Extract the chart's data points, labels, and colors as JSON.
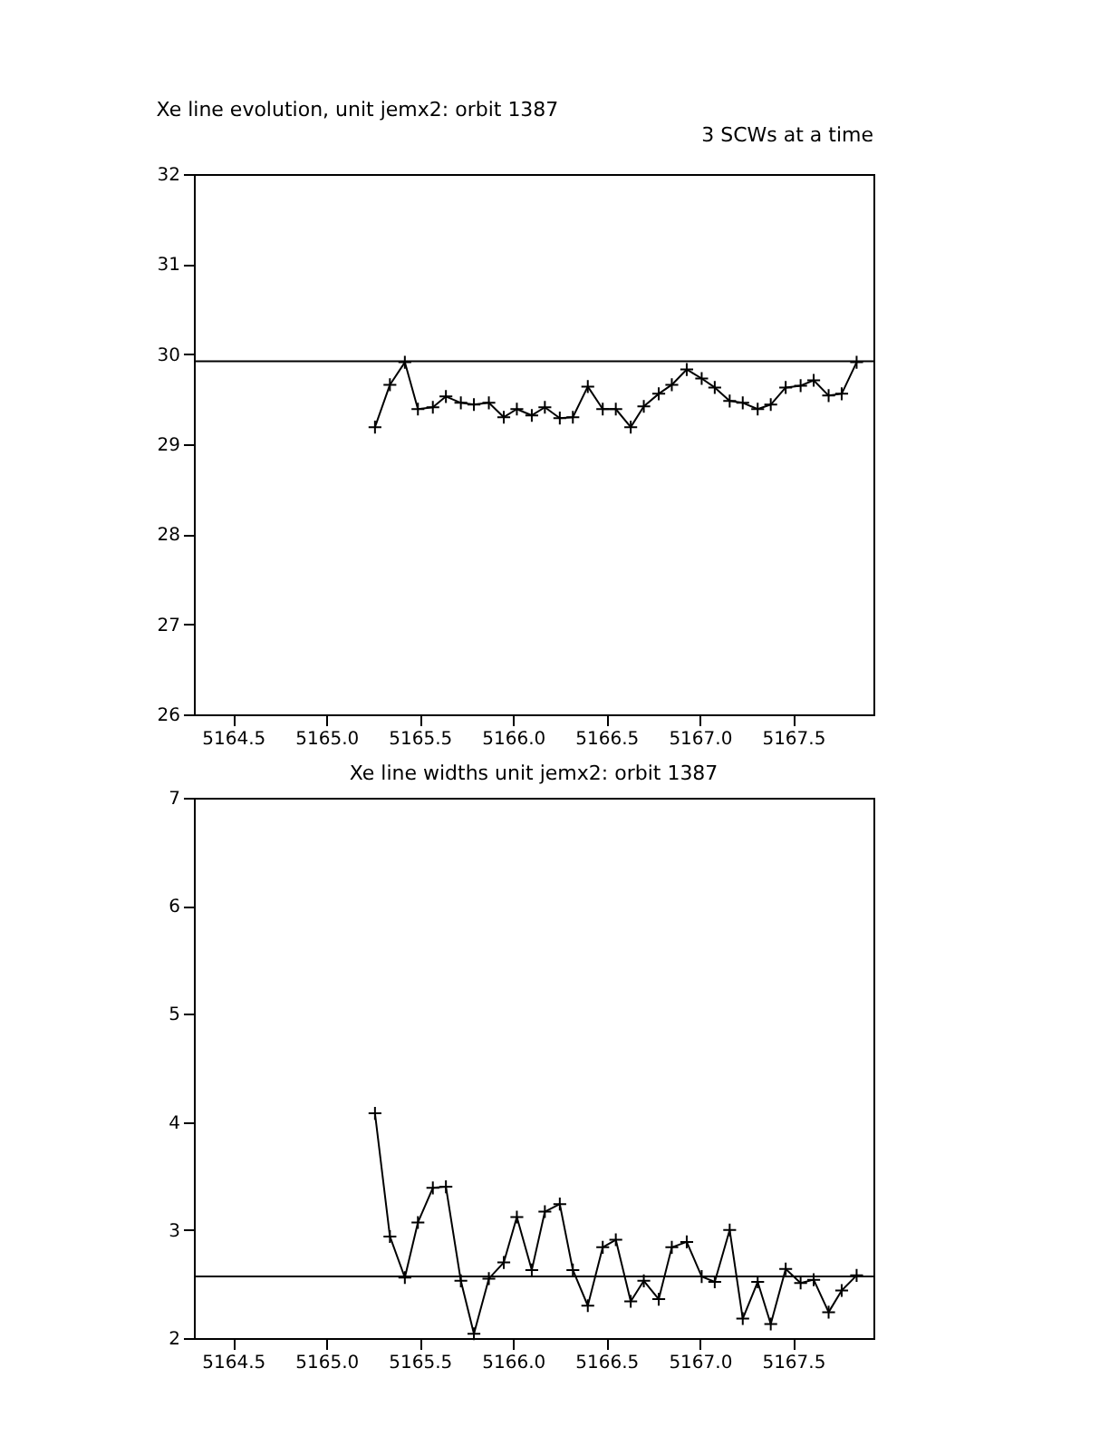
{
  "chart_data": [
    {
      "type": "line",
      "title": "Xe line evolution, unit jemx2: orbit 1387",
      "annotations": [
        "3 SCWs at a time"
      ],
      "x": [
        5165.26,
        5165.34,
        5165.42,
        5165.49,
        5165.57,
        5165.64,
        5165.72,
        5165.79,
        5165.87,
        5165.95,
        5166.02,
        5166.1,
        5166.17,
        5166.25,
        5166.32,
        5166.4,
        5166.48,
        5166.55,
        5166.63,
        5166.7,
        5166.78,
        5166.85,
        5166.93,
        5167.01,
        5167.08,
        5167.16,
        5167.23,
        5167.31,
        5167.38,
        5167.46,
        5167.54,
        5167.61,
        5167.69,
        5167.76,
        5167.84
      ],
      "series": [
        {
          "color": "#000000",
          "values": [
            29.19,
            29.66,
            29.91,
            29.39,
            29.41,
            29.53,
            29.46,
            29.44,
            29.46,
            29.3,
            29.39,
            29.32,
            29.41,
            29.29,
            29.3,
            29.64,
            29.39,
            29.39,
            29.19,
            29.42,
            29.56,
            29.66,
            29.83,
            29.73,
            29.63,
            29.48,
            29.46,
            29.39,
            29.44,
            29.63,
            29.65,
            29.71,
            29.54,
            29.56,
            29.91
          ]
        }
      ],
      "xlim": [
        5164.29,
        5167.93
      ],
      "xticks": [
        5164.5,
        {
          "value": 5165,
          "label": "5165.0"
        },
        5165.5,
        {
          "value": 5166,
          "label": "5166.0"
        },
        5166.5,
        {
          "value": 5167,
          "label": "5167.0"
        },
        5167.5
      ],
      "ylim": [
        26,
        32
      ],
      "yticks": [
        26,
        27,
        28,
        29,
        30,
        31,
        32
      ],
      "ref_lines": [
        {
          "axis": "y",
          "value": 29.92,
          "color": "#000000"
        }
      ],
      "marker": "cross",
      "line_style": "solid",
      "grid": false,
      "legend": false
    },
    {
      "type": "line",
      "title": "Xe line widths unit jemx2: orbit 1387",
      "x": [
        5165.26,
        5165.34,
        5165.42,
        5165.49,
        5165.57,
        5165.64,
        5165.72,
        5165.79,
        5165.87,
        5165.95,
        5166.02,
        5166.1,
        5166.17,
        5166.25,
        5166.32,
        5166.4,
        5166.48,
        5166.55,
        5166.63,
        5166.7,
        5166.78,
        5166.85,
        5166.93,
        5167.01,
        5167.08,
        5167.16,
        5167.23,
        5167.31,
        5167.38,
        5167.46,
        5167.54,
        5167.61,
        5167.69,
        5167.76,
        5167.84
      ],
      "series": [
        {
          "color": "#000000",
          "values": [
            4.08,
            2.94,
            2.56,
            3.07,
            3.39,
            3.4,
            2.53,
            2.04,
            2.55,
            2.7,
            3.12,
            2.63,
            3.17,
            3.24,
            2.63,
            2.3,
            2.84,
            2.91,
            2.34,
            2.53,
            2.36,
            2.84,
            2.89,
            2.57,
            2.52,
            3.0,
            2.18,
            2.52,
            2.13,
            2.64,
            2.51,
            2.54,
            2.24,
            2.44,
            2.58
          ]
        }
      ],
      "xlim": [
        5164.29,
        5167.93
      ],
      "xticks": [
        5164.5,
        {
          "value": 5165,
          "label": "5165.0"
        },
        5165.5,
        {
          "value": 5166,
          "label": "5166.0"
        },
        5166.5,
        {
          "value": 5167,
          "label": "5167.0"
        },
        5167.5
      ],
      "ylim": [
        2,
        7
      ],
      "yticks": [
        2,
        3,
        4,
        5,
        6,
        7
      ],
      "ref_lines": [
        {
          "axis": "y",
          "value": 2.57,
          "color": "#000000"
        }
      ],
      "marker": "cross",
      "line_style": "solid",
      "grid": false,
      "legend": false
    }
  ]
}
